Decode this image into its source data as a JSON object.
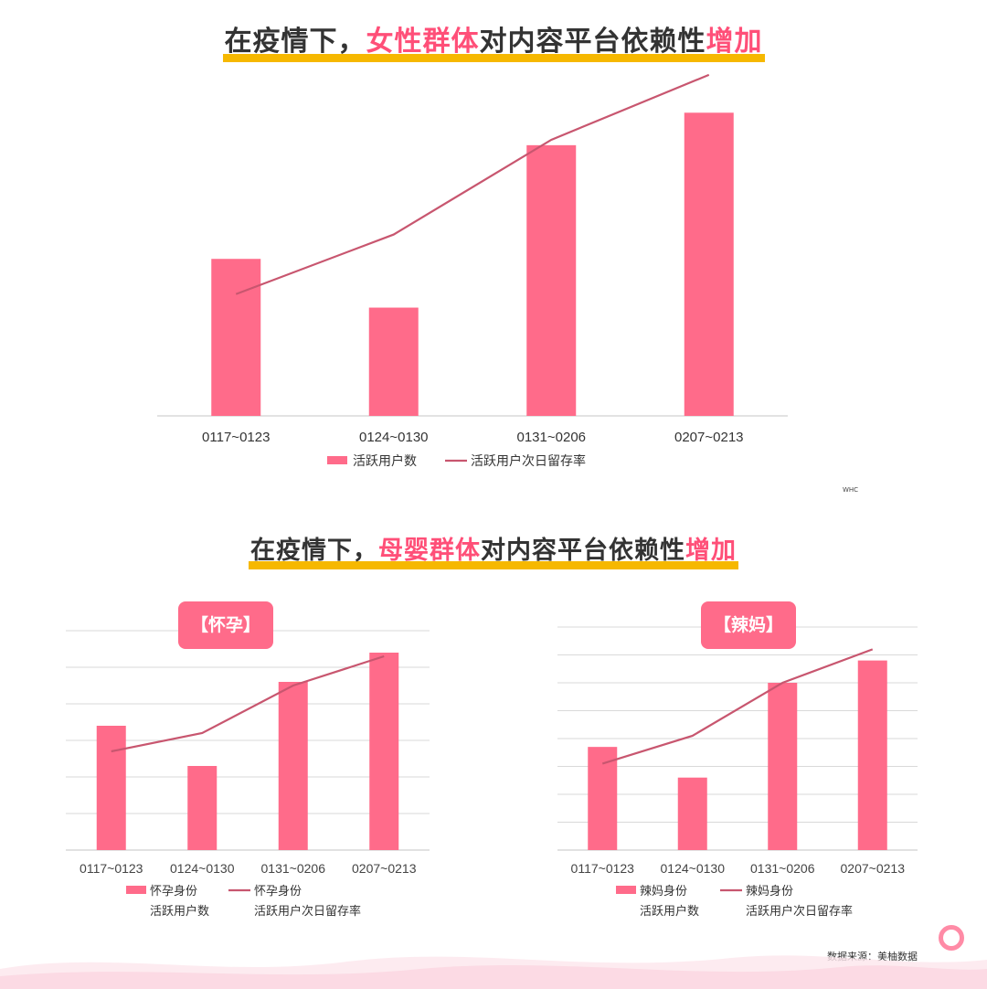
{
  "titles": {
    "top": {
      "pre": "在疫情下，",
      "hl1": "女性群体",
      "mid": "对内容平台依赖性",
      "hl2": "增加"
    },
    "bottom": {
      "pre": "在疫情下，",
      "hl1": "母婴群体",
      "mid": "对内容平台依赖性",
      "hl2": "增加"
    }
  },
  "watermark": "WHC",
  "source": "数据来源：美柚数据",
  "colors": {
    "bar": "#ff6b8a",
    "line": "#c8566f",
    "highlight": "#ff4f78",
    "underline": "#f6b800"
  },
  "chart_data": [
    {
      "type": "bar",
      "categories": [
        "0117~0123",
        "0124~0130",
        "0131~0206",
        "0207~0213"
      ],
      "series": [
        {
          "name": "活跃用户数",
          "type": "bar",
          "values": [
            58,
            40,
            100,
            112
          ]
        },
        {
          "name": "活跃用户次日留存率",
          "type": "line",
          "values": [
            45,
            67,
            102,
            126
          ]
        }
      ],
      "ylim": [
        0,
        130
      ],
      "grid": false,
      "legend": "bottom"
    },
    {
      "type": "bar",
      "tag": "【怀孕】",
      "categories": [
        "0117~0123",
        "0124~0130",
        "0131~0206",
        "0207~0213"
      ],
      "series": [
        {
          "name": "怀孕身份活跃用户数",
          "legend": [
            "怀孕身份",
            "活跃用户数"
          ],
          "type": "bar",
          "values": [
            3.4,
            2.3,
            4.6,
            5.4
          ]
        },
        {
          "name": "怀孕身份活跃用户次日留存率",
          "legend": [
            "怀孕身份",
            "活跃用户次日留存率"
          ],
          "type": "line",
          "values": [
            2.7,
            3.2,
            4.5,
            5.3
          ]
        }
      ],
      "ylim": [
        0,
        6
      ],
      "grid": true,
      "legend": "bottom"
    },
    {
      "type": "bar",
      "tag": "【辣妈】",
      "categories": [
        "0117~0123",
        "0124~0130",
        "0131~0206",
        "0207~0213"
      ],
      "series": [
        {
          "name": "辣妈身份活跃用户数",
          "legend": [
            "辣妈身份",
            "活跃用户数"
          ],
          "type": "bar",
          "values": [
            3.7,
            2.6,
            6.0,
            6.8
          ]
        },
        {
          "name": "辣妈身份活跃用户次日留存率",
          "legend": [
            "辣妈身份",
            "活跃用户次日留存率"
          ],
          "type": "line",
          "values": [
            3.1,
            4.1,
            6.0,
            7.2
          ]
        }
      ],
      "ylim": [
        0,
        8
      ],
      "grid": true,
      "legend": "bottom"
    }
  ]
}
